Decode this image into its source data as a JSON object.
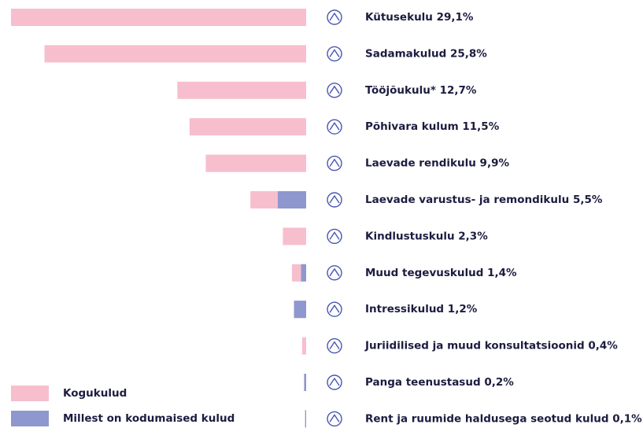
{
  "chart_data": {
    "type": "bar",
    "orientation": "horizontal",
    "categories": [
      "Kütusekulu",
      "Sadamakulud",
      "Tööjõukulu*",
      "Põhivara kulum",
      "Laevade rendikulu",
      "Laevade varustus- ja remondikulu",
      "Kindlustuskulu",
      "Muud tegevuskulud",
      "Intressikulud",
      "Juriidilised ja muud konsultatsioonid",
      "Panga teenustasud",
      "Rent ja ruumide haldusega seotud kulud"
    ],
    "series": [
      {
        "name": "Kogukulud",
        "color": "#f7bfcd",
        "values": [
          29.1,
          25.8,
          12.7,
          11.5,
          9.9,
          5.5,
          2.3,
          1.4,
          1.2,
          0.4,
          0.2,
          0.1
        ],
        "value_labels": [
          "29,1%",
          "25,8%",
          "12,7%",
          "11,5%",
          "9,9%",
          "5,5%",
          "2,3%",
          "1,4%",
          "1,2%",
          "0,4%",
          "0,2%",
          "0,1%"
        ]
      },
      {
        "name": "Millest on kodumaised kulud",
        "color": "#8f97cf",
        "values": [
          0,
          0,
          0,
          0,
          0,
          2.8,
          0,
          0.5,
          1.2,
          0,
          0.2,
          0.1
        ]
      }
    ],
    "legend": "bottom-left"
  }
}
